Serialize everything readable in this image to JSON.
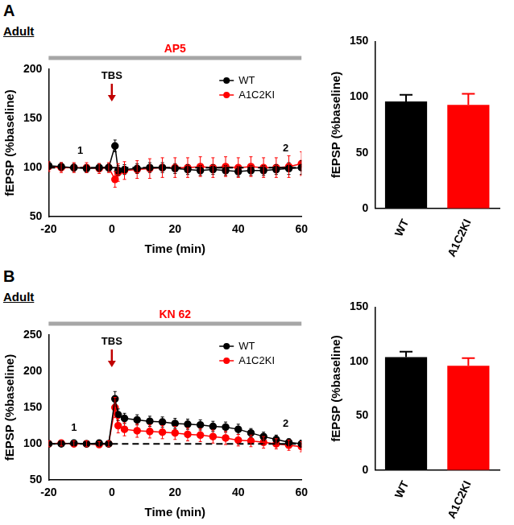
{
  "panels": [
    {
      "label": "A",
      "subtitle": "Adult"
    },
    {
      "label": "B",
      "subtitle": "Adult"
    }
  ],
  "chart_data": [
    {
      "type": "line",
      "x_label": "Time (min)",
      "y_label": "fEPSP (%baseline)",
      "x": [
        -20,
        -16,
        -12,
        -8,
        -4,
        -1,
        1,
        2,
        4,
        8,
        12,
        16,
        20,
        24,
        28,
        32,
        36,
        40,
        44,
        48,
        52,
        56,
        60
      ],
      "xlim": [
        -20,
        60
      ],
      "xticks": [
        -20,
        0,
        20,
        40,
        60
      ],
      "ylim": [
        50,
        200
      ],
      "yticks": [
        50,
        100,
        150,
        200
      ],
      "grid": false,
      "legend": "upper right",
      "marker": "circle",
      "line_style": "solid",
      "hline": 100,
      "treatment": "AP5",
      "annotations": [
        {
          "text": "TBS",
          "x": 0
        },
        {
          "text": "1",
          "x": -10,
          "y": 112
        },
        {
          "text": "2",
          "x": 55,
          "y": 114
        }
      ],
      "series": [
        {
          "name": "WT",
          "color": "#000000",
          "values": [
            102,
            101,
            100,
            99,
            100,
            100,
            122,
            97,
            98,
            99,
            100,
            100,
            99,
            98,
            97,
            98,
            97,
            96,
            97,
            97,
            98,
            99,
            100
          ],
          "errors": [
            4,
            4,
            4,
            4,
            4,
            4,
            6,
            5,
            5,
            5,
            5,
            5,
            5,
            5,
            5,
            5,
            5,
            5,
            5,
            5,
            5,
            6,
            7
          ]
        },
        {
          "name": "A1C2KI",
          "color": "#ff0000",
          "values": [
            101,
            100,
            100,
            100,
            99,
            100,
            88,
            95,
            97,
            98,
            99,
            100,
            100,
            100,
            101,
            100,
            101,
            100,
            101,
            100,
            100,
            101,
            104
          ],
          "errors": [
            5,
            5,
            5,
            5,
            5,
            5,
            8,
            9,
            9,
            9,
            10,
            10,
            10,
            10,
            10,
            10,
            10,
            10,
            10,
            10,
            10,
            11,
            12
          ]
        }
      ]
    },
    {
      "type": "bar",
      "y_label": "fEPSP (%baseline)",
      "categories": [
        "WT",
        "A1C2KI"
      ],
      "values": [
        96,
        93
      ],
      "errors": [
        6,
        10
      ],
      "colors": [
        "#000000",
        "#ff0000"
      ],
      "ylim": [
        0,
        150
      ],
      "yticks": [
        0,
        50,
        100,
        150
      ],
      "grid": false
    },
    {
      "type": "line",
      "x_label": "Time (min)",
      "y_label": "fEPSP (%baseline)",
      "x": [
        -20,
        -16,
        -12,
        -8,
        -4,
        -1,
        1,
        2,
        4,
        8,
        12,
        16,
        20,
        24,
        28,
        32,
        36,
        40,
        44,
        48,
        52,
        56,
        60
      ],
      "xlim": [
        -20,
        60
      ],
      "xticks": [
        -20,
        0,
        20,
        40,
        60
      ],
      "ylim": [
        50,
        250
      ],
      "yticks": [
        50,
        100,
        150,
        200,
        250
      ],
      "grid": false,
      "legend": "upper right",
      "marker": "circle",
      "line_style": "solid",
      "hline": 100,
      "treatment": "KN 62",
      "annotations": [
        {
          "text": "TBS",
          "x": 0
        },
        {
          "text": "1",
          "x": -12,
          "y": 115
        },
        {
          "text": "2",
          "x": 55,
          "y": 120
        }
      ],
      "series": [
        {
          "name": "WT",
          "color": "#000000",
          "values": [
            100,
            100,
            101,
            100,
            101,
            100,
            162,
            140,
            135,
            133,
            131,
            130,
            128,
            127,
            126,
            124,
            123,
            120,
            115,
            110,
            106,
            102,
            100
          ],
          "errors": [
            3,
            3,
            3,
            3,
            3,
            3,
            10,
            8,
            7,
            7,
            7,
            7,
            7,
            7,
            7,
            7,
            7,
            7,
            6,
            6,
            6,
            5,
            5
          ]
        },
        {
          "name": "A1C2KI",
          "color": "#ff0000",
          "values": [
            100,
            101,
            100,
            100,
            99,
            100,
            150,
            125,
            120,
            118,
            117,
            116,
            115,
            113,
            112,
            110,
            108,
            105,
            104,
            102,
            100,
            98,
            96
          ],
          "errors": [
            4,
            4,
            4,
            4,
            4,
            4,
            14,
            10,
            9,
            9,
            9,
            9,
            9,
            9,
            9,
            9,
            9,
            8,
            8,
            8,
            7,
            7,
            7
          ]
        }
      ]
    },
    {
      "type": "bar",
      "y_label": "fEPSP (%baseline)",
      "categories": [
        "WT",
        "A1C2KI"
      ],
      "values": [
        104,
        96
      ],
      "errors": [
        5,
        7
      ],
      "colors": [
        "#000000",
        "#ff0000"
      ],
      "ylim": [
        0,
        150
      ],
      "yticks": [
        0,
        50,
        100,
        150
      ],
      "grid": false
    }
  ]
}
